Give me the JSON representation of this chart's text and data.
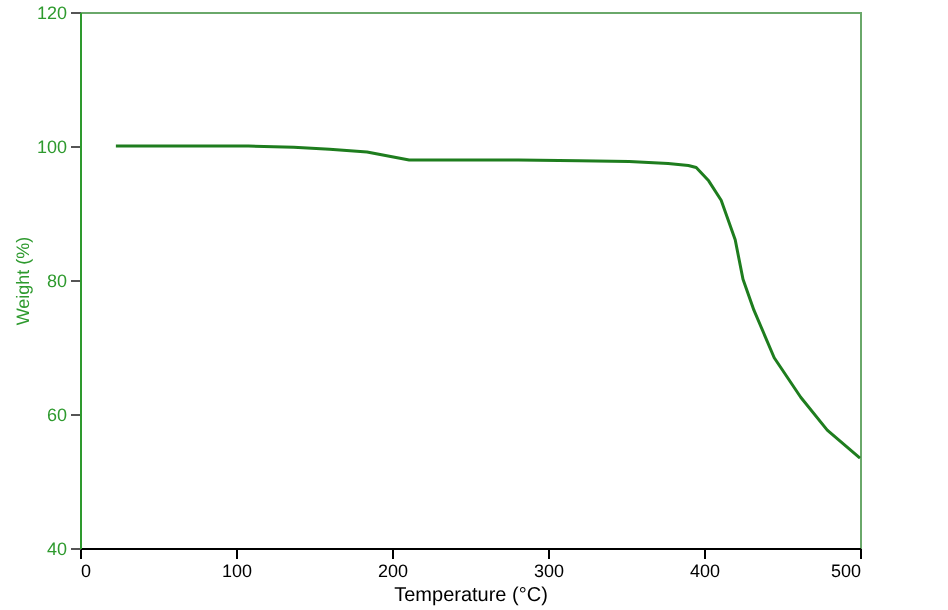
{
  "chart_data": {
    "type": "line",
    "xlabel": "Temperature (°C)",
    "ylabel": "Weight (%)",
    "xlim": [
      0,
      500
    ],
    "xticks": [
      0,
      100,
      200,
      300,
      400,
      500
    ],
    "ylim": [
      40,
      120
    ],
    "yticks": [
      40,
      60,
      80,
      100,
      120
    ],
    "grid": false,
    "series": [
      {
        "color": "#1e7d1e",
        "x": [
          23,
          60,
          108,
          137,
          160,
          184,
          200,
          211,
          240,
          281,
          320,
          352,
          377,
          390,
          395,
          403,
          411,
          420,
          425,
          432,
          445,
          462,
          479,
          500
        ],
        "values": [
          100,
          100,
          100,
          99.8,
          99.5,
          99.1,
          98.4,
          97.9,
          97.9,
          97.9,
          97.8,
          97.7,
          97.4,
          97.1,
          96.8,
          94.8,
          91.9,
          86,
          80.1,
          75.5,
          68.4,
          62.5,
          57.6,
          53.4
        ]
      }
    ]
  }
}
